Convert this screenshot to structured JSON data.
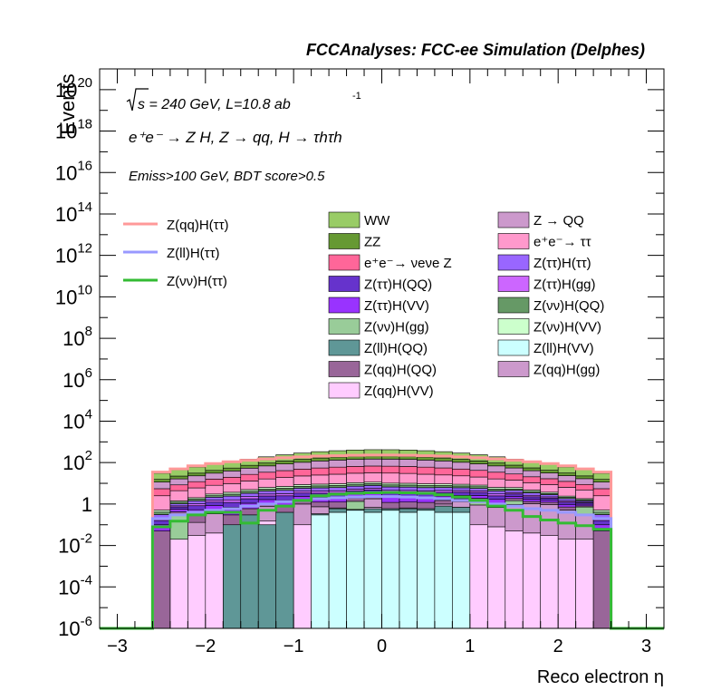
{
  "chart_data": {
    "type": "bar",
    "subtype": "stacked-histogram-with-signal-lines",
    "title": "FCCAnalyses: FCC-ee Simulation (Delphes)",
    "xlabel": "Reco electron η",
    "ylabel": "Events",
    "xlim": [
      -3.2,
      3.2
    ],
    "ylim": [
      1e-06,
      1e+21
    ],
    "yscale": "log",
    "xticks": [
      -3,
      -2,
      -1,
      0,
      1,
      2,
      3
    ],
    "xtick_labels": [
      "−3",
      "−2",
      "−1",
      "0",
      "1",
      "2",
      "3"
    ],
    "yticks": [
      {
        "mant": "10",
        "exp": "-6",
        "v": 1e-06
      },
      {
        "mant": "10",
        "exp": "-4",
        "v": 0.0001
      },
      {
        "mant": "10",
        "exp": "-2",
        "v": 0.01
      },
      {
        "mant": "1",
        "exp": "",
        "v": 1
      },
      {
        "mant": "10",
        "exp": "2",
        "v": 100.0
      },
      {
        "mant": "10",
        "exp": "4",
        "v": 10000.0
      },
      {
        "mant": "10",
        "exp": "6",
        "v": 1000000.0
      },
      {
        "mant": "10",
        "exp": "8",
        "v": 100000000.0
      },
      {
        "mant": "10",
        "exp": "10",
        "v": 10000000000.0
      },
      {
        "mant": "10",
        "exp": "12",
        "v": 1000000000000.0
      },
      {
        "mant": "10",
        "exp": "14",
        "v": 100000000000000.0
      },
      {
        "mant": "10",
        "exp": "16",
        "v": 1e+16
      },
      {
        "mant": "10",
        "exp": "18",
        "v": 1e+18
      },
      {
        "mant": "10",
        "exp": "20",
        "v": 1e+20
      }
    ],
    "annotations": {
      "energy_text": "s = 240 GeV, L=10.8 ab",
      "lumi_exp": "-1",
      "process_text": "e⁺e⁻ → Z H, Z → qq, H → τhτh",
      "selection_text": "Emiss>100 GeV, BDT score>0.5"
    },
    "bin_edges": [
      -2.6,
      -2.4,
      -2.2,
      -2.0,
      -1.8,
      -1.6,
      -1.4,
      -1.2,
      -1.0,
      -0.8,
      -0.6,
      -0.4,
      -0.2,
      0.0,
      0.2,
      0.4,
      0.6,
      0.8,
      1.0,
      1.2,
      1.4,
      1.6,
      1.8,
      2.0,
      2.2,
      2.4,
      2.6
    ],
    "stack_order": "bottom-to-top",
    "backgrounds": [
      {
        "name": "Z(ll)H(VV)",
        "color": "#ccffff",
        "values": [
          0,
          0,
          0,
          0,
          0,
          0,
          0,
          0,
          0,
          0.3,
          0.4,
          0.5,
          0.4,
          0.5,
          0.4,
          0.5,
          0.4,
          0.4,
          0,
          0,
          0,
          0,
          0,
          0,
          0,
          0
        ]
      },
      {
        "name": "Z(ll)H(QQ)",
        "color": "#5f9797",
        "values": [
          0,
          0,
          0,
          0,
          0.1,
          0.3,
          0.1,
          0.4,
          0,
          0.04,
          0.2,
          0.05,
          0.2,
          0.1,
          0.2,
          0.1,
          0.4,
          0.3,
          0,
          0,
          0,
          0,
          0,
          0,
          0,
          0
        ]
      },
      {
        "name": "Z(qq)H(VV)",
        "color": "#ffccff",
        "values": [
          0,
          0.02,
          0.03,
          0.04,
          0,
          0,
          0.05,
          0,
          0.1,
          0,
          0.05,
          0,
          0.1,
          0,
          0.05,
          0,
          0,
          0,
          0.1,
          0.08,
          0.05,
          0.04,
          0.03,
          0.02,
          0.02,
          0
        ]
      },
      {
        "name": "Z(qq)H(gg)",
        "color": "#cc99cc",
        "values": [
          0,
          0,
          0.1,
          0.3,
          0,
          0,
          0.6,
          0,
          0.9,
          0.4,
          0,
          0,
          1.1,
          0,
          0,
          0,
          0.2,
          0.6,
          0.8,
          0.6,
          0.9,
          1.0,
          0.9,
          0.5,
          0.3,
          0
        ]
      },
      {
        "name": "Z(νν)H(gg)",
        "color": "#99cc99",
        "values": [
          0,
          0.3,
          0,
          0,
          0,
          0,
          0,
          0,
          0,
          0,
          0,
          0.8,
          0,
          0,
          0,
          0,
          0,
          0,
          0.5,
          0,
          0.5,
          0,
          0,
          0,
          0.4,
          0
        ]
      },
      {
        "name": "Z(qq)H(QQ)",
        "color": "#996699",
        "values": [
          0.05,
          0.1,
          0.2,
          0.2,
          0.2,
          0.3,
          0.3,
          0.4,
          0.5,
          0.5,
          0.6,
          0.6,
          0.6,
          0.6,
          0.6,
          0.6,
          0.5,
          0.5,
          0.5,
          0.4,
          0.4,
          0.3,
          0.3,
          0.2,
          0.1,
          0.05
        ]
      },
      {
        "name": "Z(ττ)H(VV)",
        "color": "#9933ff",
        "values": [
          0.05,
          0.15,
          0.2,
          0.3,
          0.4,
          0.5,
          0.6,
          0.7,
          0.8,
          0.9,
          0.9,
          1.0,
          1.0,
          1.0,
          1.0,
          0.9,
          0.9,
          0.8,
          0.7,
          0.6,
          0.5,
          0.4,
          0.3,
          0.2,
          0.15,
          0.05
        ]
      },
      {
        "name": "Z(ττ)H(QQ)",
        "color": "#6633cc",
        "values": [
          0.06,
          0.15,
          0.3,
          0.4,
          0.5,
          0.7,
          0.8,
          1.0,
          1.1,
          1.2,
          1.3,
          1.3,
          1.4,
          1.4,
          1.3,
          1.3,
          1.2,
          1.1,
          1.0,
          0.8,
          0.7,
          0.5,
          0.4,
          0.3,
          0.15,
          0.06
        ]
      },
      {
        "name": "Z(ττ)H(gg)",
        "color": "#cc66ff",
        "values": [
          0.05,
          0.1,
          0.2,
          0.3,
          0.4,
          0.5,
          0.6,
          0.7,
          0.8,
          0.9,
          0.9,
          1.0,
          1.0,
          1.0,
          1.0,
          0.9,
          0.9,
          0.8,
          0.7,
          0.6,
          0.5,
          0.4,
          0.3,
          0.2,
          0.1,
          0.05
        ]
      },
      {
        "name": "Z(ττ)H(ττ)",
        "color": "#9966ff",
        "values": [
          0.1,
          0.2,
          0.4,
          0.6,
          0.8,
          1.0,
          1.2,
          1.4,
          1.6,
          1.8,
          1.9,
          2.0,
          2.1,
          2.1,
          2.0,
          1.9,
          1.8,
          1.6,
          1.4,
          1.2,
          1.0,
          0.8,
          0.6,
          0.4,
          0.2,
          0.1
        ]
      },
      {
        "name": "Z(νν)H(QQ)",
        "color": "#669966",
        "values": [
          0.1,
          0.2,
          0.3,
          0.4,
          0.6,
          0.8,
          1.0,
          1.2,
          1.4,
          1.5,
          1.6,
          1.7,
          1.7,
          1.7,
          1.7,
          1.6,
          1.5,
          1.4,
          1.2,
          1.0,
          0.8,
          0.6,
          0.4,
          0.3,
          0.2,
          0.1
        ]
      },
      {
        "name": "Z(νν)H(VV)",
        "color": "#ccffcc",
        "values": [
          0.1,
          0.2,
          0.3,
          0.5,
          0.7,
          0.9,
          1.1,
          1.3,
          1.5,
          1.6,
          1.7,
          1.8,
          1.8,
          1.8,
          1.8,
          1.7,
          1.6,
          1.5,
          1.3,
          1.1,
          0.9,
          0.7,
          0.5,
          0.3,
          0.2,
          0.1
        ]
      },
      {
        "name": "e⁺e⁻→ ττ",
        "color": "#ff99cc",
        "values": [
          2,
          3,
          4,
          5,
          6,
          8,
          10,
          12,
          14,
          16,
          18,
          20,
          21,
          21,
          20,
          18,
          16,
          14,
          12,
          10,
          8,
          6,
          5,
          4,
          3,
          2
        ]
      },
      {
        "name": "e⁺e⁻→ νeνe Z",
        "color": "#ff6699",
        "values": [
          3,
          4,
          6,
          8,
          10,
          14,
          18,
          22,
          26,
          30,
          33,
          35,
          36,
          36,
          35,
          33,
          30,
          26,
          22,
          18,
          14,
          10,
          8,
          6,
          4,
          3
        ]
      },
      {
        "name": "Z → QQ",
        "color": "#cc99cc",
        "values": [
          6,
          8,
          11,
          15,
          20,
          27,
          35,
          45,
          55,
          65,
          72,
          78,
          80,
          80,
          78,
          72,
          65,
          55,
          45,
          35,
          27,
          20,
          15,
          11,
          8,
          6
        ]
      },
      {
        "name": "ZZ",
        "color": "#669933",
        "values": [
          4,
          6,
          8,
          11,
          15,
          20,
          26,
          33,
          40,
          47,
          53,
          57,
          59,
          59,
          57,
          53,
          47,
          40,
          33,
          26,
          20,
          15,
          11,
          8,
          6,
          4
        ]
      },
      {
        "name": "WW",
        "color": "#99cc66",
        "values": [
          15,
          22,
          30,
          40,
          55,
          72,
          95,
          120,
          145,
          170,
          190,
          205,
          212,
          212,
          205,
          190,
          170,
          145,
          120,
          95,
          72,
          55,
          40,
          30,
          22,
          15
        ]
      }
    ],
    "signals": [
      {
        "name": "Z(qq)H(ττ)",
        "color": "#ff9999",
        "values": [
          35,
          50,
          70,
          90,
          110,
          130,
          150,
          170,
          190,
          205,
          215,
          225,
          230,
          230,
          225,
          215,
          205,
          190,
          170,
          150,
          130,
          110,
          90,
          70,
          50,
          35
        ]
      },
      {
        "name": "Z(ll)H(ττ)",
        "color": "#9999ff",
        "values": [
          0.2,
          0.3,
          0.4,
          0.5,
          0.6,
          0.8,
          1.0,
          1.3,
          1.5,
          1.8,
          2.0,
          2.2,
          2.3,
          2.3,
          2.2,
          2.0,
          1.8,
          1.5,
          1.3,
          1.0,
          0.8,
          0.6,
          0.5,
          0.4,
          0.3,
          0.2
        ]
      },
      {
        "name": "Z(νν)H(ττ)",
        "color": "#33bb33",
        "values": [
          0.08,
          0.15,
          0.3,
          0.4,
          0.4,
          0.12,
          0.5,
          0.8,
          1.5,
          2.5,
          3.0,
          3.3,
          3.5,
          3.6,
          3.5,
          3.3,
          2.8,
          2.2,
          1.5,
          0.8,
          0.5,
          0.25,
          0.17,
          0.12,
          0.09,
          0.06
        ]
      }
    ],
    "legend": {
      "signal_entries": [
        "Z(qq)H(ττ)",
        "Z(ll)H(ττ)",
        "Z(νν)H(ττ)"
      ],
      "col1": [
        "WW",
        "ZZ",
        "e⁺e⁻→ νeνe Z",
        "Z(ττ)H(QQ)",
        "Z(ττ)H(VV)",
        "Z(νν)H(gg)",
        "Z(ll)H(QQ)",
        "Z(qq)H(QQ)",
        "Z(qq)H(VV)"
      ],
      "col2": [
        "Z → QQ",
        "e⁺e⁻→ ττ",
        "Z(ττ)H(ττ)",
        "Z(ττ)H(gg)",
        "Z(νν)H(QQ)",
        "Z(νν)H(VV)",
        "Z(ll)H(VV)",
        "Z(qq)H(gg)"
      ],
      "placement": "upper-middle"
    },
    "grid": false
  }
}
